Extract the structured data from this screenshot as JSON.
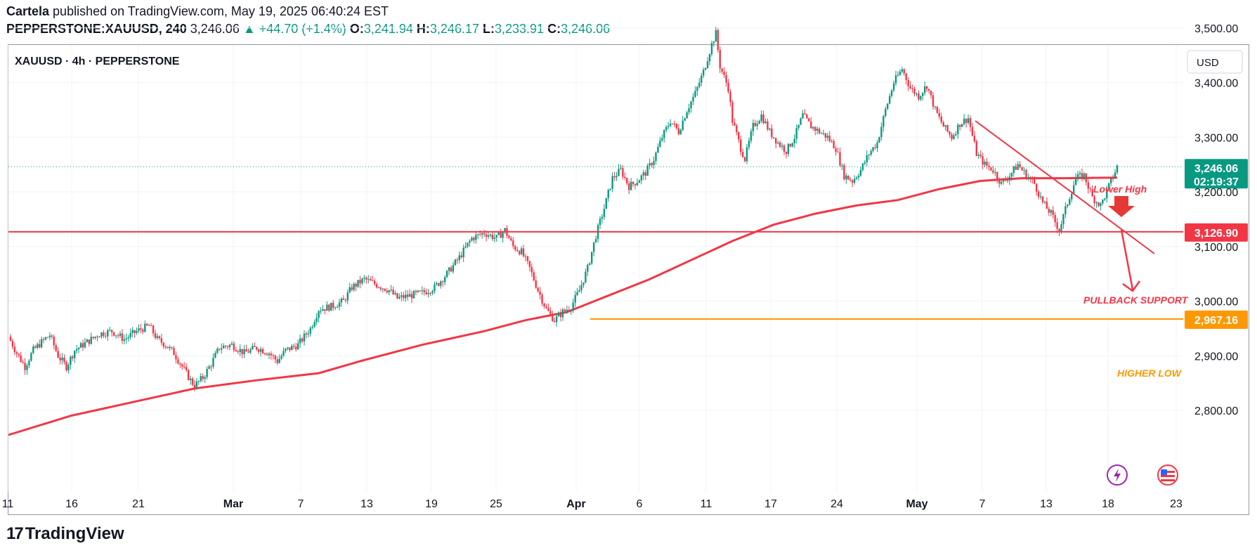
{
  "header": {
    "author": "Cartela",
    "published_text": "published on TradingView.com, May 19, 2025 06:40:24 EST",
    "symbol": "PEPPERSTONE:XAUUSD, 240",
    "price": "3,246.06",
    "change": "+44.70 (+1.4%)",
    "o_label": "O:",
    "o": "3,241.94",
    "h_label": "H:",
    "h": "3,246.17",
    "l_label": "L:",
    "l": "3,233.91",
    "c_label": "C:",
    "c": "3,246.06"
  },
  "legend": "XAUUSD · 4h · PEPPERSTONE",
  "currency": "USD",
  "brand": "TradingView",
  "colors": {
    "up": "#089981",
    "down": "#f23645",
    "ma": "#f23645",
    "support": "#f23645",
    "higher_low": "#ff9800",
    "trend": "#f23645"
  },
  "chart_data": {
    "type": "candlestick",
    "symbol": "XAUUSD",
    "timeframe": "4h",
    "ylim": [
      2760,
      3560
    ],
    "y_ticks": [
      "2,800.00",
      "2,900.00",
      "3,000.00",
      "3,100.00",
      "3,200.00",
      "3,300.00",
      "3,400.00",
      "3,500.00"
    ],
    "y_tick_values": [
      2800,
      2900,
      3000,
      3100,
      3200,
      3300,
      3400,
      3500
    ],
    "x_ticks": [
      "11",
      "16",
      "21",
      "Mar",
      "7",
      "13",
      "19",
      "25",
      "Apr",
      "6",
      "11",
      "17",
      "24",
      "May",
      "7",
      "13",
      "18",
      "23"
    ],
    "x_tick_bold": [
      "Mar",
      "Apr",
      "May"
    ],
    "last_price": "3,246.06",
    "countdown": "02:19:37",
    "last_value": 3246.06,
    "support_level": {
      "label": "PULLBACK SUPPORT",
      "value": 3126.9,
      "tag": "3,126.90"
    },
    "higher_low_level": {
      "label": "HIGHER LOW",
      "value": 2967.16,
      "tag": "2,967.16"
    },
    "annotation": "Lower High",
    "price_path": [
      [
        0,
        2935
      ],
      [
        4,
        2905
      ],
      [
        8,
        2880
      ],
      [
        12,
        2910
      ],
      [
        16,
        2925
      ],
      [
        20,
        2938
      ],
      [
        24,
        2900
      ],
      [
        28,
        2880
      ],
      [
        32,
        2910
      ],
      [
        38,
        2925
      ],
      [
        44,
        2940
      ],
      [
        50,
        2945
      ],
      [
        56,
        2930
      ],
      [
        62,
        2945
      ],
      [
        68,
        2955
      ],
      [
        72,
        2930
      ],
      [
        76,
        2920
      ],
      [
        80,
        2905
      ],
      [
        84,
        2880
      ],
      [
        88,
        2855
      ],
      [
        90,
        2845
      ],
      [
        94,
        2860
      ],
      [
        98,
        2885
      ],
      [
        102,
        2915
      ],
      [
        108,
        2920
      ],
      [
        114,
        2905
      ],
      [
        120,
        2915
      ],
      [
        126,
        2905
      ],
      [
        130,
        2890
      ],
      [
        134,
        2910
      ],
      [
        140,
        2920
      ],
      [
        146,
        2950
      ],
      [
        150,
        2985
      ],
      [
        156,
        2990
      ],
      [
        162,
        3000
      ],
      [
        166,
        3025
      ],
      [
        172,
        3040
      ],
      [
        178,
        3030
      ],
      [
        184,
        3020
      ],
      [
        188,
        3005
      ],
      [
        194,
        3010
      ],
      [
        200,
        3015
      ],
      [
        206,
        3025
      ],
      [
        212,
        3050
      ],
      [
        218,
        3080
      ],
      [
        224,
        3115
      ],
      [
        230,
        3125
      ],
      [
        236,
        3115
      ],
      [
        240,
        3130
      ],
      [
        244,
        3100
      ],
      [
        248,
        3090
      ],
      [
        252,
        3060
      ],
      [
        256,
        3020
      ],
      [
        260,
        2985
      ],
      [
        264,
        2965
      ],
      [
        268,
        2980
      ],
      [
        272,
        2990
      ],
      [
        276,
        3020
      ],
      [
        280,
        3060
      ],
      [
        284,
        3120
      ],
      [
        288,
        3170
      ],
      [
        292,
        3225
      ],
      [
        296,
        3240
      ],
      [
        300,
        3210
      ],
      [
        304,
        3220
      ],
      [
        308,
        3235
      ],
      [
        312,
        3260
      ],
      [
        316,
        3300
      ],
      [
        320,
        3330
      ],
      [
        324,
        3310
      ],
      [
        328,
        3350
      ],
      [
        332,
        3380
      ],
      [
        336,
        3420
      ],
      [
        340,
        3470
      ],
      [
        342,
        3490
      ],
      [
        344,
        3430
      ],
      [
        348,
        3390
      ],
      [
        350,
        3330
      ],
      [
        354,
        3280
      ],
      [
        356,
        3260
      ],
      [
        360,
        3320
      ],
      [
        364,
        3340
      ],
      [
        368,
        3310
      ],
      [
        372,
        3290
      ],
      [
        376,
        3275
      ],
      [
        380,
        3300
      ],
      [
        384,
        3340
      ],
      [
        388,
        3320
      ],
      [
        392,
        3310
      ],
      [
        396,
        3300
      ],
      [
        400,
        3280
      ],
      [
        404,
        3230
      ],
      [
        408,
        3220
      ],
      [
        412,
        3240
      ],
      [
        416,
        3270
      ],
      [
        420,
        3290
      ],
      [
        424,
        3350
      ],
      [
        428,
        3400
      ],
      [
        432,
        3425
      ],
      [
        436,
        3390
      ],
      [
        440,
        3375
      ],
      [
        444,
        3395
      ],
      [
        448,
        3350
      ],
      [
        452,
        3320
      ],
      [
        456,
        3300
      ],
      [
        460,
        3325
      ],
      [
        464,
        3335
      ],
      [
        468,
        3270
      ],
      [
        472,
        3250
      ],
      [
        476,
        3240
      ],
      [
        480,
        3215
      ],
      [
        484,
        3230
      ],
      [
        488,
        3250
      ],
      [
        492,
        3230
      ],
      [
        496,
        3215
      ],
      [
        500,
        3180
      ],
      [
        504,
        3160
      ],
      [
        508,
        3130
      ],
      [
        512,
        3180
      ],
      [
        516,
        3225
      ],
      [
        520,
        3230
      ],
      [
        524,
        3190
      ],
      [
        528,
        3175
      ],
      [
        532,
        3210
      ],
      [
        536,
        3246
      ]
    ],
    "ma_path": [
      [
        0,
        2755
      ],
      [
        30,
        2790
      ],
      [
        60,
        2815
      ],
      [
        90,
        2840
      ],
      [
        120,
        2855
      ],
      [
        150,
        2868
      ],
      [
        170,
        2890
      ],
      [
        200,
        2920
      ],
      [
        230,
        2945
      ],
      [
        250,
        2965
      ],
      [
        270,
        2980
      ],
      [
        290,
        3010
      ],
      [
        310,
        3040
      ],
      [
        330,
        3075
      ],
      [
        350,
        3110
      ],
      [
        370,
        3140
      ],
      [
        390,
        3160
      ],
      [
        410,
        3175
      ],
      [
        430,
        3185
      ],
      [
        450,
        3205
      ],
      [
        470,
        3220
      ],
      [
        490,
        3225
      ],
      [
        510,
        3225
      ],
      [
        536,
        3226
      ]
    ]
  }
}
